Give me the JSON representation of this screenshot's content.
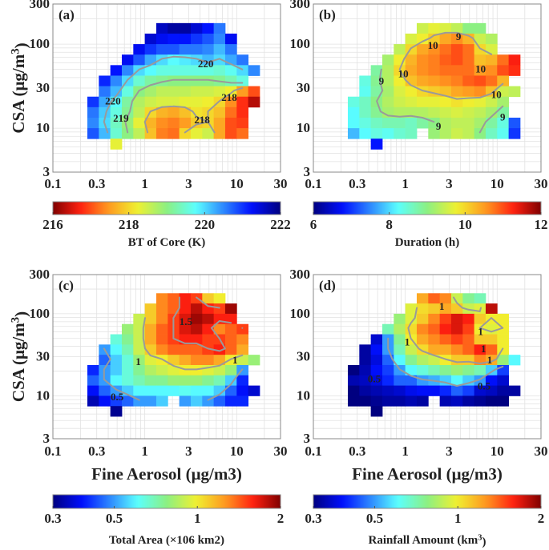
{
  "chart_data": [
    {
      "type": "heatmap",
      "panel_label": "(a)",
      "xlabel": "",
      "ylabel": "CSA (μg/m3)",
      "colorbar_label": "BT of Core (K)",
      "colorbar_scale": "linear",
      "colorbar_reversed": true,
      "clim": [
        216,
        222
      ],
      "colorbar_ticks": [
        "216",
        "218",
        "220",
        "222"
      ],
      "colorbar_tick_values": [
        216,
        218,
        220,
        222
      ],
      "contour_levels": [
        218,
        219,
        220
      ],
      "contour_labels": [
        {
          "text": "220",
          "x": 4.6,
          "y": 58
        },
        {
          "text": "220",
          "x": 0.45,
          "y": 21
        },
        {
          "text": "219",
          "x": 0.55,
          "y": 13
        },
        {
          "text": "218",
          "x": 4.2,
          "y": 12.5
        },
        {
          "text": "218",
          "x": 8.3,
          "y": 23
        }
      ]
    },
    {
      "type": "heatmap",
      "panel_label": "(b)",
      "xlabel": "",
      "ylabel": "",
      "colorbar_label": "Duration (h)",
      "colorbar_scale": "linear",
      "colorbar_reversed": false,
      "clim": [
        6,
        12
      ],
      "colorbar_ticks": [
        "6",
        "8",
        "10",
        "12"
      ],
      "colorbar_tick_values": [
        6,
        8,
        10,
        12
      ],
      "contour_levels": [
        9,
        10
      ],
      "contour_labels": [
        {
          "text": "9",
          "x": 3.8,
          "y": 122
        },
        {
          "text": "10",
          "x": 2.0,
          "y": 96
        },
        {
          "text": "10",
          "x": 6.6,
          "y": 50
        },
        {
          "text": "9",
          "x": 0.55,
          "y": 36
        },
        {
          "text": "10",
          "x": 0.95,
          "y": 44
        },
        {
          "text": "10",
          "x": 9.8,
          "y": 25
        },
        {
          "text": "9",
          "x": 2.3,
          "y": 10.5
        },
        {
          "text": "9",
          "x": 11.5,
          "y": 13.5
        }
      ]
    },
    {
      "type": "heatmap",
      "panel_label": "(c)",
      "xlabel": "Fine Aerosol (μg/m3)",
      "ylabel": "CSA (μg/m3)",
      "colorbar_label": "Total Area (×106 km2)",
      "colorbar_scale": "log",
      "colorbar_reversed": false,
      "clim": [
        0.3,
        2
      ],
      "colorbar_ticks": [
        "0.3",
        "0.5",
        "1",
        "2"
      ],
      "colorbar_tick_values": [
        0.3,
        0.5,
        1,
        2
      ],
      "contour_levels": [
        0.5,
        1,
        1.5
      ],
      "contour_labels": [
        {
          "text": "1.5",
          "x": 2.8,
          "y": 80
        },
        {
          "text": "1",
          "x": 0.85,
          "y": 26
        },
        {
          "text": "1",
          "x": 9.6,
          "y": 27
        },
        {
          "text": "0.5",
          "x": 0.5,
          "y": 9.6
        }
      ]
    },
    {
      "type": "heatmap",
      "panel_label": "(d)",
      "xlabel": "Fine Aerosol (μg/m3)",
      "ylabel": "",
      "colorbar_label": "Rainfall Amount (km3)",
      "colorbar_scale": "log",
      "colorbar_reversed": false,
      "clim": [
        0.3,
        2
      ],
      "colorbar_ticks": [
        "0.3",
        "0.5",
        "1",
        "2"
      ],
      "colorbar_tick_values": [
        0.3,
        0.5,
        1,
        2
      ],
      "contour_levels": [
        0.5,
        1
      ],
      "contour_labels": [
        {
          "text": "1",
          "x": 2.5,
          "y": 122
        },
        {
          "text": "1",
          "x": 1.05,
          "y": 45
        },
        {
          "text": "1",
          "x": 6.6,
          "y": 60
        },
        {
          "text": "1",
          "x": 7.1,
          "y": 37
        },
        {
          "text": "1",
          "x": 8.3,
          "y": 27
        },
        {
          "text": "0.5",
          "x": 0.46,
          "y": 16
        },
        {
          "text": "0.5",
          "x": 7.2,
          "y": 13
        }
      ]
    }
  ],
  "axes": {
    "xlim": [
      0.1,
      30
    ],
    "ylim": [
      3,
      300
    ],
    "xscale": "log",
    "yscale": "log",
    "grid": true,
    "xticks": [
      "0.1",
      "0.3",
      "1",
      "3",
      "10",
      "30"
    ],
    "xtick_values": [
      0.1,
      0.3,
      1,
      3,
      10,
      30
    ],
    "yticks": [
      "3",
      "10",
      "30",
      "100",
      "300"
    ],
    "ytick_values": [
      3,
      10,
      30,
      100,
      300
    ],
    "x_bin_centers": [
      0.27,
      0.36,
      0.49,
      0.65,
      0.87,
      1.15,
      1.54,
      2.05,
      2.74,
      3.65,
      4.87,
      6.5,
      8.66,
      11.5,
      15.4
    ],
    "y_bin_centers": [
      158,
      118,
      89,
      67,
      50,
      37.6,
      28,
      21,
      15.8,
      11.9,
      8.9,
      6.7
    ]
  },
  "grids": [
    [
      [
        null,
        null,
        null,
        null,
        null,
        null,
        221.6,
        221.8,
        221.8,
        221.5,
        221.2,
        220.6,
        null,
        null,
        null
      ],
      [
        null,
        null,
        null,
        null,
        null,
        221.5,
        221.3,
        221.2,
        221.2,
        221,
        220.8,
        220.5,
        221.3,
        null,
        null
      ],
      [
        null,
        null,
        null,
        null,
        221.3,
        221,
        220.8,
        220.8,
        220.6,
        220.6,
        220.5,
        220.2,
        220.6,
        null,
        null
      ],
      [
        null,
        null,
        null,
        221.3,
        220.8,
        220.3,
        220,
        219.8,
        219.9,
        220,
        220.2,
        220,
        220.3,
        220.6,
        null
      ],
      [
        null,
        null,
        221.2,
        220.5,
        220,
        219.8,
        219.6,
        219.6,
        219.6,
        219.6,
        219.6,
        219.5,
        219.7,
        220,
        220.5
      ],
      [
        null,
        221.1,
        220.5,
        220,
        219.5,
        219.2,
        219.1,
        219,
        219,
        219,
        219,
        219.1,
        219.3,
        219.6,
        null
      ],
      [
        null,
        220.6,
        220.2,
        219.6,
        219,
        218.8,
        218.6,
        218.6,
        218.6,
        218.5,
        218.5,
        218.4,
        218.2,
        217.5,
        217
      ],
      [
        221,
        220.3,
        219.8,
        219.2,
        218.7,
        218.5,
        218.4,
        218.4,
        218.3,
        218.3,
        218.2,
        218,
        217.4,
        216.8,
        216.3
      ],
      [
        220.6,
        220.1,
        219.6,
        219.1,
        218.6,
        218,
        217.7,
        217.6,
        217.8,
        218.1,
        218,
        217.8,
        217.2,
        216.8,
        null
      ],
      [
        220.5,
        220,
        219.4,
        218.9,
        218.3,
        217.7,
        217.4,
        217.3,
        217.5,
        217.9,
        218,
        217.6,
        217,
        216.9,
        null
      ],
      [
        220.8,
        220.2,
        219.5,
        219,
        218.6,
        217.8,
        217.3,
        217.2,
        218,
        218.3,
        218.5,
        217.6,
        217,
        217.2,
        null
      ],
      [
        null,
        null,
        218.3,
        null,
        null,
        null,
        null,
        null,
        null,
        null,
        null,
        null,
        null,
        null,
        null
      ]
    ],
    [
      [
        null,
        null,
        null,
        null,
        null,
        null,
        9.5,
        9.7,
        9.6,
        9.4,
        9.0,
        9.0,
        null,
        null,
        null
      ],
      [
        null,
        null,
        null,
        null,
        null,
        9.6,
        9.8,
        10.1,
        10.4,
        10.6,
        10.3,
        9.5,
        9.3,
        null,
        null
      ],
      [
        null,
        null,
        null,
        null,
        9.4,
        10.0,
        10.4,
        10.6,
        10.8,
        11.0,
        10.8,
        10.0,
        9.6,
        null,
        null
      ],
      [
        null,
        null,
        null,
        9.2,
        9.8,
        10.3,
        10.6,
        10.7,
        10.9,
        11.0,
        10.8,
        10.2,
        10.3,
        10.8,
        11.3
      ],
      [
        null,
        null,
        8.8,
        9.3,
        10.0,
        10.4,
        10.6,
        10.7,
        10.8,
        10.8,
        10.8,
        10.5,
        10.6,
        11.0,
        11.2
      ],
      [
        null,
        8.4,
        8.9,
        9.3,
        9.8,
        10.2,
        10.4,
        10.5,
        10.6,
        10.7,
        10.9,
        11.0,
        10.8,
        10.3,
        null
      ],
      [
        null,
        8.3,
        8.8,
        9.2,
        9.6,
        9.8,
        10.0,
        10.1,
        10.2,
        10.4,
        10.5,
        10.6,
        10.2,
        9.5,
        9.4
      ],
      [
        8.4,
        8.6,
        9.0,
        9.3,
        9.5,
        9.6,
        9.7,
        9.7,
        9.8,
        9.9,
        9.8,
        9.7,
        9.5,
        9.2,
        null
      ],
      [
        8.2,
        8.6,
        8.9,
        9.2,
        9.3,
        9.3,
        9.3,
        9.4,
        9.5,
        9.6,
        9.5,
        9.4,
        9.2,
        8.8,
        null
      ],
      [
        8.2,
        8.4,
        8.6,
        8.7,
        8.7,
        8.6,
        8.8,
        9.0,
        9.3,
        9.4,
        9.4,
        9.2,
        8.8,
        8.4,
        7.2
      ],
      [
        7.8,
        8.2,
        8.4,
        8.3,
        8.5,
        8.6,
        null,
        9.1,
        9.3,
        9.5,
        9.4,
        9.0,
        8.6,
        8.3,
        7.0
      ],
      [
        null,
        null,
        6.8,
        null,
        null,
        null,
        null,
        null,
        null,
        null,
        null,
        null,
        null,
        null,
        null
      ]
    ],
    [
      [
        null,
        null,
        null,
        null,
        null,
        null,
        1.3,
        1.4,
        1.6,
        1.5,
        1.1,
        1.0,
        null,
        null,
        null
      ],
      [
        null,
        null,
        null,
        null,
        null,
        1.1,
        1.3,
        1.4,
        1.6,
        1.8,
        1.6,
        1.5,
        1.9,
        null,
        null
      ],
      [
        null,
        null,
        null,
        null,
        0.9,
        1.1,
        1.3,
        1.5,
        1.7,
        1.9,
        1.8,
        1.6,
        1.6,
        null,
        null
      ],
      [
        null,
        null,
        null,
        0.8,
        0.9,
        1.2,
        1.4,
        1.5,
        1.7,
        1.8,
        1.6,
        1.3,
        1.4,
        1.5,
        null
      ],
      [
        null,
        null,
        0.65,
        0.75,
        0.9,
        1.2,
        1.4,
        1.5,
        1.6,
        1.6,
        1.5,
        1.5,
        1.4,
        1.3,
        null
      ],
      [
        null,
        0.5,
        0.6,
        0.7,
        0.9,
        1.1,
        1.3,
        1.4,
        1.4,
        1.4,
        1.5,
        1.6,
        1.4,
        1.2,
        null
      ],
      [
        null,
        0.45,
        0.55,
        0.65,
        0.8,
        0.95,
        1.0,
        1.1,
        1.2,
        1.3,
        1.3,
        1.2,
        1.0,
        0.9,
        0.8
      ],
      [
        0.4,
        0.5,
        0.55,
        0.65,
        0.75,
        0.85,
        0.9,
        0.95,
        1.0,
        1.0,
        0.95,
        0.9,
        0.8,
        0.5,
        null
      ],
      [
        0.45,
        0.5,
        0.6,
        0.65,
        0.7,
        0.75,
        0.75,
        0.8,
        0.8,
        0.8,
        0.75,
        0.7,
        0.55,
        0.4,
        null
      ],
      [
        0.38,
        0.45,
        0.5,
        0.55,
        0.6,
        0.6,
        0.6,
        0.6,
        0.62,
        0.6,
        0.6,
        0.55,
        0.45,
        0.38,
        0.35
      ],
      [
        0.33,
        0.38,
        0.42,
        0.45,
        0.5,
        0.5,
        0.55,
        null,
        0.5,
        0.55,
        0.5,
        0.45,
        0.4,
        0.4,
        null
      ],
      [
        null,
        null,
        0.31,
        null,
        null,
        null,
        null,
        null,
        null,
        null,
        null,
        null,
        null,
        null,
        null
      ]
    ],
    [
      [
        null,
        null,
        null,
        null,
        null,
        null,
        1.2,
        1.4,
        1.3,
        0.9,
        0.75,
        0.7,
        null,
        null,
        null
      ],
      [
        null,
        null,
        null,
        null,
        null,
        0.95,
        1.05,
        1.1,
        1.2,
        1.1,
        0.9,
        0.95,
        1.8,
        null,
        null
      ],
      [
        null,
        null,
        null,
        null,
        0.8,
        0.95,
        1.1,
        1.3,
        1.5,
        1.7,
        1.6,
        1.1,
        1.0,
        1.0,
        null
      ],
      [
        null,
        null,
        null,
        0.7,
        0.85,
        1.05,
        1.3,
        1.4,
        1.6,
        1.7,
        1.5,
        1.0,
        0.95,
        1.0,
        null
      ],
      [
        null,
        null,
        0.35,
        0.5,
        0.75,
        1.0,
        1.2,
        1.3,
        1.4,
        1.5,
        1.4,
        1.1,
        1.1,
        1.0,
        null
      ],
      [
        null,
        0.32,
        0.38,
        0.5,
        0.7,
        0.9,
        1.05,
        1.2,
        1.2,
        1.3,
        1.4,
        1.6,
        1.4,
        1.0,
        null
      ],
      [
        null,
        0.32,
        0.36,
        0.45,
        0.6,
        0.75,
        0.85,
        0.9,
        1.0,
        1.1,
        1.1,
        1.3,
        1.2,
        0.8,
        0.6
      ],
      [
        0.3,
        0.33,
        0.38,
        0.42,
        0.5,
        0.6,
        0.65,
        0.7,
        0.75,
        0.8,
        0.75,
        0.7,
        0.55,
        0.42,
        null
      ],
      [
        0.33,
        0.34,
        0.36,
        0.4,
        0.45,
        0.45,
        0.5,
        0.52,
        0.55,
        0.6,
        0.55,
        0.5,
        0.38,
        0.35,
        null
      ],
      [
        0.3,
        0.32,
        0.33,
        0.34,
        0.35,
        0.37,
        0.38,
        0.38,
        0.4,
        0.45,
        0.42,
        0.35,
        0.34,
        0.32,
        0.32
      ],
      [
        0.3,
        0.3,
        0.31,
        0.32,
        0.32,
        0.33,
        0.32,
        null,
        0.33,
        0.34,
        0.32,
        0.31,
        0.3,
        0.3,
        null
      ],
      [
        null,
        null,
        0.3,
        null,
        null,
        null,
        null,
        null,
        null,
        null,
        null,
        null,
        null,
        null,
        null
      ]
    ]
  ],
  "colors": {
    "contour": "#9a9a9a",
    "grid": "#e2e2e2",
    "axis": "#888888"
  }
}
